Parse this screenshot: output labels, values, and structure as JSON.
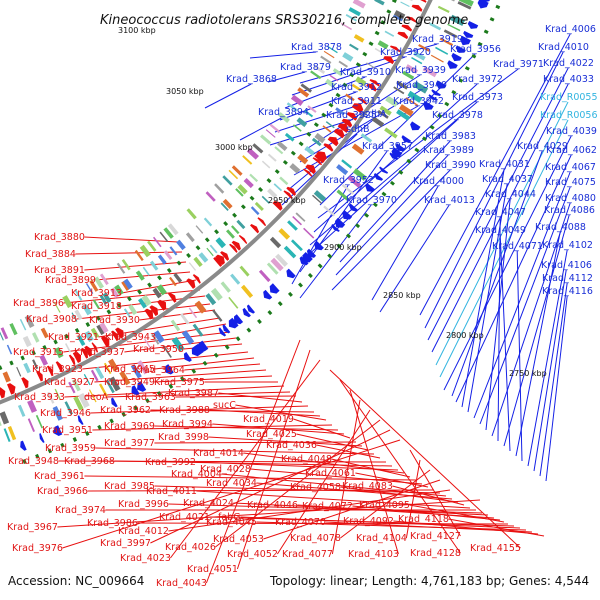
{
  "title": "Kineococcus radiotolerans SRS30216, complete genome",
  "footer": {
    "accession": "Accession: NC_009664",
    "summary": "Topology: linear; Length: 4,761,183 bp; Genes: 4,544"
  },
  "colors": {
    "forward": "#1420e6",
    "reverse": "#e81010",
    "rna": "#33b5e0",
    "backbone": "#8a8a8a",
    "tick": "#1c7a1c"
  },
  "kbp_ticks": [
    {
      "label": "3100 kbp"
    },
    {
      "label": "3050 kbp"
    },
    {
      "label": "3000 kbp"
    },
    {
      "label": "2950 kbp"
    },
    {
      "label": "2900 kbp"
    },
    {
      "label": "2850 kbp"
    },
    {
      "label": "2800 kbp"
    },
    {
      "label": "2750 kbp"
    }
  ],
  "forward_labels": [
    "Krad_3878",
    "Krad_3879",
    "Krad_3868",
    "Krad_3894",
    "Krad_3919",
    "Krad_3920",
    "Krad_3910",
    "Krad_3912",
    "Krad_3911",
    "Krad_3925",
    "Krad_3939",
    "Krad_3940",
    "Krad_3942",
    "sdhA",
    "sdhB",
    "Krad_3956",
    "Krad_3971",
    "Krad_3972",
    "Krad_3973",
    "Krad_3978",
    "Krad_3957",
    "Krad_3983",
    "Krad_3989",
    "Krad_3952",
    "Krad_3990",
    "Krad_3970",
    "Krad_4000",
    "Krad_4013",
    "Krad_4006",
    "Krad_4010",
    "Krad_4022",
    "Krad_4033",
    "Krad_R0055",
    "Krad_R0056",
    "Krad_4039",
    "Krad_4029",
    "Krad_4062",
    "Krad_4031",
    "Krad_4037",
    "Krad_4067",
    "Krad_4075",
    "Krad_4044",
    "Krad_4080",
    "Krad_4047",
    "Krad_4086",
    "Krad_4049",
    "Krad_4088",
    "Krad_4071",
    "Krad_4102",
    "Krad_4106",
    "Krad_4112",
    "Krad_4116"
  ],
  "reverse_labels": [
    "Krad_3880",
    "Krad_3884",
    "Krad_3891",
    "Krad_3899",
    "Krad_3913",
    "Krad_3896",
    "Krad_3918",
    "Krad_3908",
    "Krad_3930",
    "Krad_3921",
    "Krad_3943",
    "Krad_3915",
    "Krad_3937",
    "Krad_3958",
    "Krad_3923",
    "Krad_3945",
    "Krad_3964",
    "Krad_3927",
    "Krad_3949",
    "Krad_3975",
    "Krad_3933",
    "deoA",
    "Krad_3963",
    "Krad_3987",
    "Krad_3946",
    "Krad_3962",
    "Krad_3988",
    "sucC",
    "Krad_3951",
    "Krad_3969",
    "Krad_3994",
    "Krad_4019",
    "Krad_3977",
    "Krad_3998",
    "Krad_4025",
    "Krad_3959",
    "Krad_4036",
    "Krad_3948",
    "Krad_3968",
    "Krad_3992",
    "Krad_4014",
    "Krad_4048",
    "Krad_3961",
    "Krad_4028",
    "Krad_4061",
    "Krad_3966",
    "Krad_3985",
    "Krad_4004",
    "Krad_4034",
    "Krad_4058",
    "Krad_4083",
    "Krad_4011",
    "Krad_3974",
    "Krad_3996",
    "Krad_4024",
    "Krad_4046",
    "Krad_4072",
    "Krad_4095",
    "Krad_3986",
    "Krad_4021",
    "fabG",
    "Krad_4045",
    "Krad_4070",
    "Krad_4092",
    "Krad_4118",
    "Krad_3967",
    "Krad_4012",
    "Krad_4053",
    "Krad_4078",
    "Krad_4104",
    "Krad_4127",
    "Krad_3976",
    "Krad_3997",
    "Krad_4026",
    "Krad_4052",
    "Krad_4077",
    "Krad_4103",
    "Krad_4128",
    "Krad_4155",
    "Krad_4023",
    "Krad_4051",
    "Krad_4043"
  ]
}
